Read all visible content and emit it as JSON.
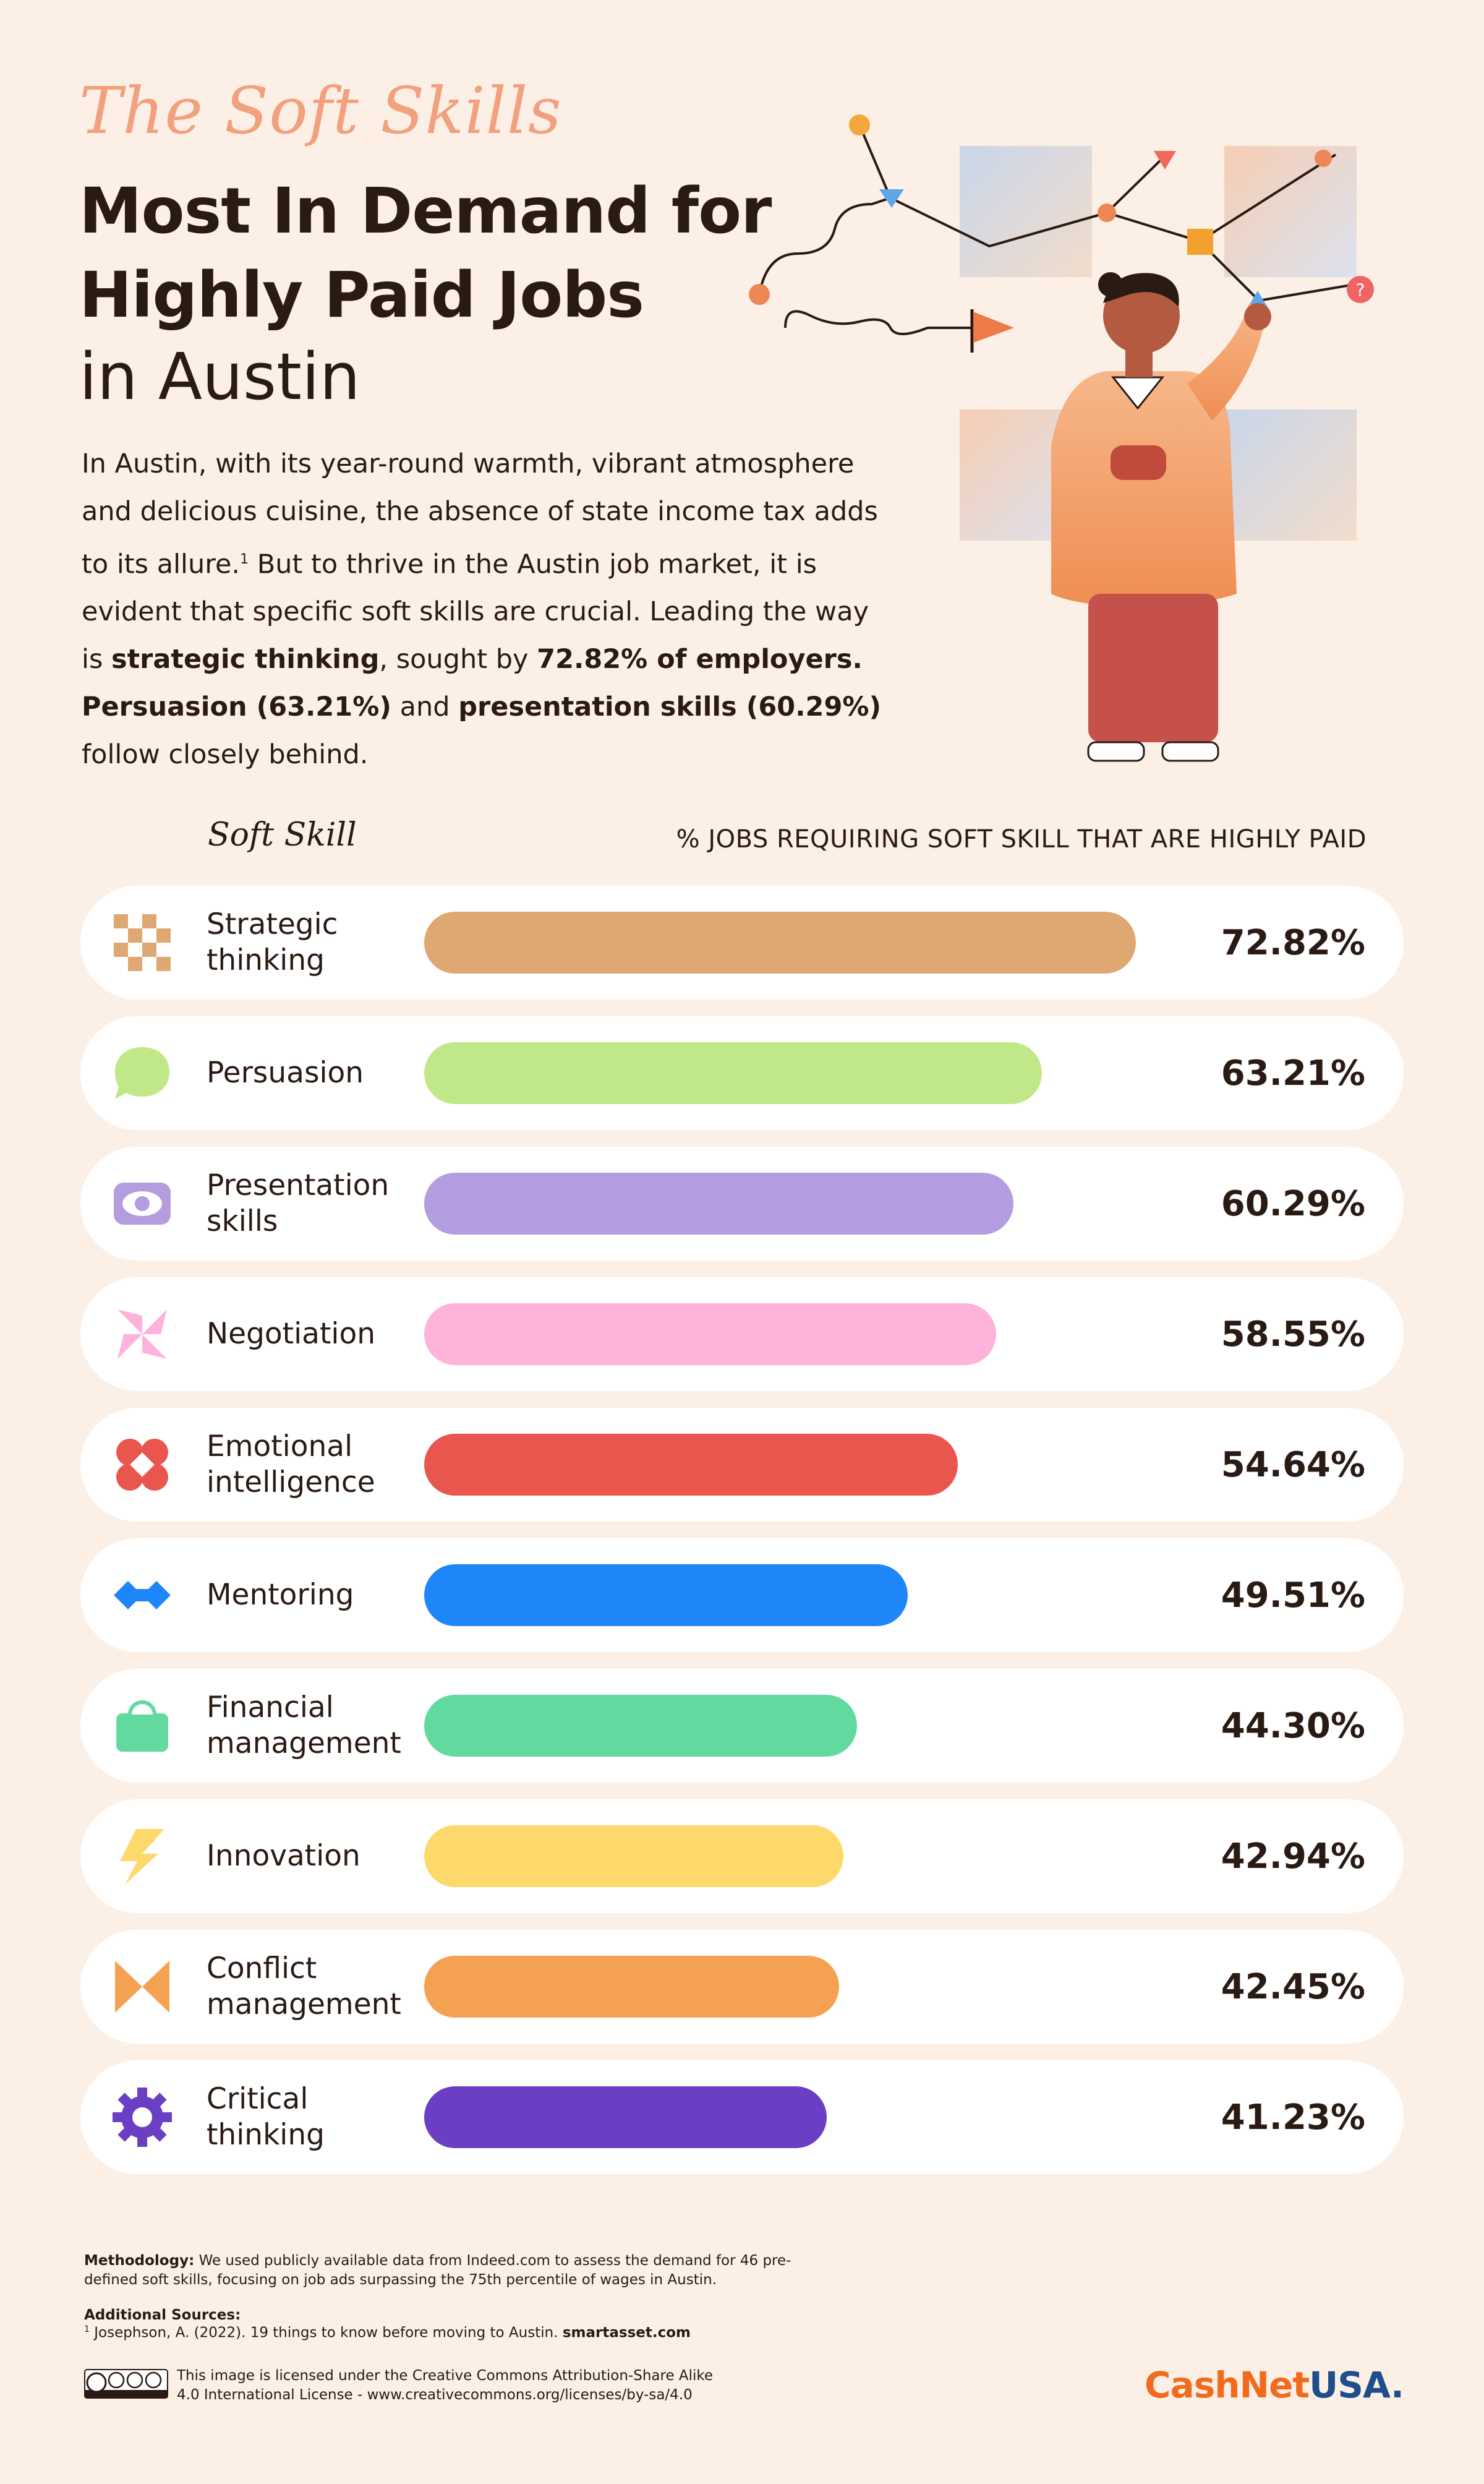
{
  "header": {
    "script_title": "The Soft Skills",
    "title_line_1": "Most In Demand for",
    "title_line_2": "Highly Paid Jobs",
    "title_line_3": "in Austin"
  },
  "intro": {
    "p1": "In Austin, with its year-round warmth, vibrant atmosphere and delicious cuisine, the absence of state income tax adds to its allure.",
    "footnote_mark": "1",
    "p2": " But to thrive in the Austin job market, it is evident that specific soft skills are crucial. Leading the way is ",
    "b1": "strategic thinking",
    "p3": ", sought by ",
    "b2": "72.82% of employers.",
    "p4": " ",
    "b3": "Persuasion (63.21%)",
    "p5": " and ",
    "b4": "presentation skills (60.29%)",
    "p6": " follow closely behind."
  },
  "columns": {
    "skill_header": "Soft Skill",
    "metric_header": "% JOBS REQUIRING SOFT SKILL THAT ARE HIGHLY PAID"
  },
  "chart_data": {
    "type": "bar",
    "orientation": "horizontal",
    "categories": [
      "Strategic thinking",
      "Persuasion",
      "Presentation skills",
      "Negotiation",
      "Emotional intelligence",
      "Mentoring",
      "Financial management",
      "Innovation",
      "Conflict management",
      "Critical thinking"
    ],
    "values": [
      72.82,
      63.21,
      60.29,
      58.55,
      54.64,
      49.51,
      44.3,
      42.94,
      42.45,
      41.23
    ],
    "value_labels": [
      "72.82%",
      "63.21%",
      "60.29%",
      "58.55%",
      "54.64%",
      "49.51%",
      "44.30%",
      "42.94%",
      "42.45%",
      "41.23%"
    ],
    "label_lines": [
      [
        "Strategic",
        "thinking"
      ],
      [
        "Persuasion"
      ],
      [
        "Presentation",
        "skills"
      ],
      [
        "Negotiation"
      ],
      [
        "Emotional",
        "intelligence"
      ],
      [
        "Mentoring"
      ],
      [
        "Financial",
        "management"
      ],
      [
        "Innovation"
      ],
      [
        "Conflict",
        "management"
      ],
      [
        "Critical",
        "thinking"
      ]
    ],
    "colors": [
      "#DFA772",
      "#C1E888",
      "#B39DDE",
      "#FDB3DA",
      "#E8564E",
      "#1D86F8",
      "#62D99E",
      "#FDD86A",
      "#F5A152",
      "#6B3FC4"
    ],
    "icons": [
      "checker-icon",
      "speech-bubble-icon",
      "eye-icon",
      "pinwheel-icon",
      "clover-heart-icon",
      "infinity-diamond-icon",
      "wallet-icon",
      "lightning-icon",
      "bowtie-icon",
      "gear-icon"
    ],
    "xlim": [
      0,
      80
    ],
    "xlabel": "",
    "ylabel": "",
    "title": ""
  },
  "footer": {
    "methodology_label": "Methodology:",
    "methodology_text": " We used publicly available data from Indeed.com to assess the demand for 46 pre-defined soft skills, focusing on job ads surpassing the 75th percentile of wages in Austin.",
    "sources_title": "Additional Sources:",
    "source_mark": "1",
    "source_text": " Josephson, A. (2022). 19 things to know before moving to Austin. ",
    "source_site": "smartasset.com",
    "license_text": "This image is licensed under the Creative Commons Attribution-Share Alike 4.0 International License - www.creativecommons.org/licenses/by-sa/4.0",
    "brand_a": "CashNet",
    "brand_b": "USA."
  }
}
